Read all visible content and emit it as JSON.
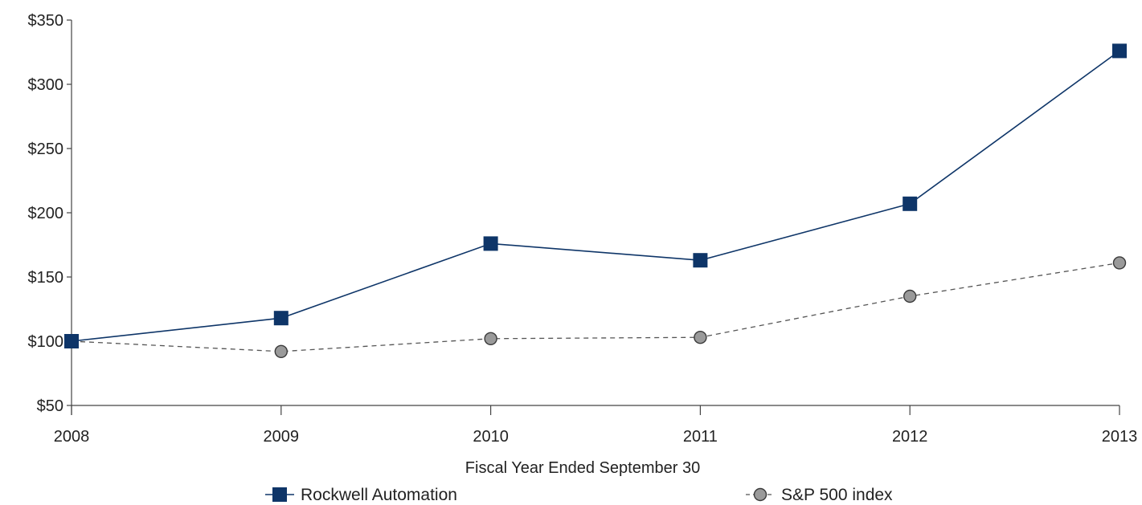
{
  "chart_data": {
    "type": "line",
    "title": "",
    "xlabel": "Fiscal Year Ended September 30",
    "ylabel": "",
    "x": [
      "2008",
      "2009",
      "2010",
      "2011",
      "2012",
      "2013"
    ],
    "y_ticks": [
      "$50",
      "$100",
      "$150",
      "$200",
      "$250",
      "$300",
      "$350"
    ],
    "y_tick_values": [
      50,
      100,
      150,
      200,
      250,
      300,
      350
    ],
    "ylim": [
      50,
      350
    ],
    "grid": false,
    "legend_position": "bottom",
    "series": [
      {
        "name": "Rockwell Automation",
        "values": [
          100,
          118,
          176,
          163,
          207,
          326
        ],
        "color": "#0e3568",
        "marker": "square",
        "line_style": "solid"
      },
      {
        "name": "S&P 500 index",
        "values": [
          100,
          92,
          102,
          103,
          135,
          161
        ],
        "color": "#9a9a9a",
        "marker": "circle",
        "line_style": "dashed"
      }
    ]
  }
}
